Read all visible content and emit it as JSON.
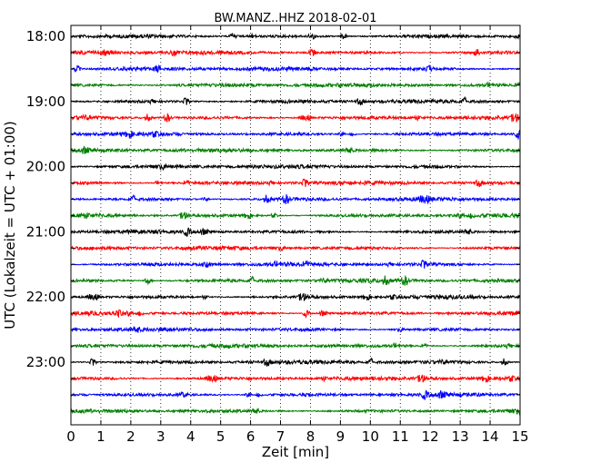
{
  "chart_data": {
    "type": "line",
    "title": "BW.MANZ..HHZ 2018-02-01",
    "xlabel": "Zeit  [min]",
    "ylabel": "UTC (Lokalzeit = UTC + 01:00)",
    "xlim": [
      0,
      15
    ],
    "x_ticks": [
      0,
      1,
      2,
      3,
      4,
      5,
      6,
      7,
      8,
      9,
      10,
      11,
      12,
      13,
      14,
      15
    ],
    "x_tick_labels": [
      "0",
      "1",
      "2",
      "3",
      "4",
      "5",
      "6",
      "7",
      "8",
      "9",
      "10",
      "11",
      "12",
      "13",
      "14",
      "15"
    ],
    "hour_labels": [
      "18:00",
      "19:00",
      "20:00",
      "21:00",
      "22:00",
      "23:00"
    ],
    "trace_colors": [
      "#000000",
      "#ff0000",
      "#0000ff",
      "#007f00"
    ],
    "trace_count": 24,
    "minutes_per_trace": 15,
    "vertical_grid": "dotted",
    "series_description_note": ""
  }
}
